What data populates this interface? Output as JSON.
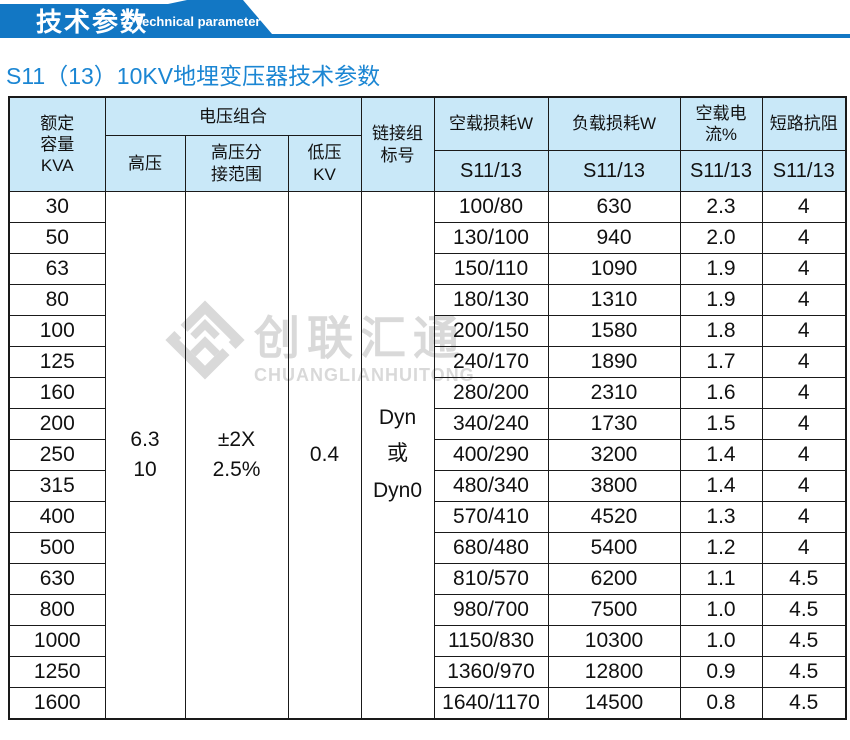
{
  "theme": {
    "banner_blue": "#1277c4",
    "title_blue": "#1b86d3",
    "header_bg": "#c9e8f8",
    "watermark_gray": "#d9d9d9"
  },
  "banner": {
    "title_cn": "技术参数",
    "title_en": "Technical parameter"
  },
  "page_title": "S11（13）10KV地埋变压器技术参数",
  "watermark": {
    "cn": "创联汇通",
    "en": "CHUANGLIANHUITONG"
  },
  "table": {
    "headers": {
      "capacity": "额定\n容量\nKVA",
      "voltage_combo": "电压组合",
      "hv": "高压",
      "hv_tap_range": "高压分\n接范围",
      "lv": "低压\nKV",
      "vector_group": "链接组\n标号",
      "no_load_loss": "空载损耗W",
      "load_loss": "负载损耗W",
      "no_load_current": "空载电流%",
      "short_circuit_impedance": "短路抗阻",
      "series_label": "S11/13"
    },
    "merged_cells": {
      "hv_value": "6.3\n10",
      "hv_tap_value": "±2X\n2.5%",
      "lv_value": "0.4",
      "vector_group_value": "Dyn\n或\nDyn0"
    },
    "rows": [
      {
        "kva": "30",
        "no_load_loss": "100/80",
        "load_loss": "630",
        "no_load_current": "2.3",
        "impedance": "4"
      },
      {
        "kva": "50",
        "no_load_loss": "130/100",
        "load_loss": "940",
        "no_load_current": "2.0",
        "impedance": "4"
      },
      {
        "kva": "63",
        "no_load_loss": "150/110",
        "load_loss": "1090",
        "no_load_current": "1.9",
        "impedance": "4"
      },
      {
        "kva": "80",
        "no_load_loss": "180/130",
        "load_loss": "1310",
        "no_load_current": "1.9",
        "impedance": "4"
      },
      {
        "kva": "100",
        "no_load_loss": "200/150",
        "load_loss": "1580",
        "no_load_current": "1.8",
        "impedance": "4"
      },
      {
        "kva": "125",
        "no_load_loss": "240/170",
        "load_loss": "1890",
        "no_load_current": "1.7",
        "impedance": "4"
      },
      {
        "kva": "160",
        "no_load_loss": "280/200",
        "load_loss": "2310",
        "no_load_current": "1.6",
        "impedance": "4"
      },
      {
        "kva": "200",
        "no_load_loss": "340/240",
        "load_loss": "1730",
        "no_load_current": "1.5",
        "impedance": "4"
      },
      {
        "kva": "250",
        "no_load_loss": "400/290",
        "load_loss": "3200",
        "no_load_current": "1.4",
        "impedance": "4"
      },
      {
        "kva": "315",
        "no_load_loss": "480/340",
        "load_loss": "3800",
        "no_load_current": "1.4",
        "impedance": "4"
      },
      {
        "kva": "400",
        "no_load_loss": "570/410",
        "load_loss": "4520",
        "no_load_current": "1.3",
        "impedance": "4"
      },
      {
        "kva": "500",
        "no_load_loss": "680/480",
        "load_loss": "5400",
        "no_load_current": "1.2",
        "impedance": "4"
      },
      {
        "kva": "630",
        "no_load_loss": "810/570",
        "load_loss": "6200",
        "no_load_current": "1.1",
        "impedance": "4.5"
      },
      {
        "kva": "800",
        "no_load_loss": "980/700",
        "load_loss": "7500",
        "no_load_current": "1.0",
        "impedance": "4.5"
      },
      {
        "kva": "1000",
        "no_load_loss": "1150/830",
        "load_loss": "10300",
        "no_load_current": "1.0",
        "impedance": "4.5"
      },
      {
        "kva": "1250",
        "no_load_loss": "1360/970",
        "load_loss": "12800",
        "no_load_current": "0.9",
        "impedance": "4.5"
      },
      {
        "kva": "1600",
        "no_load_loss": "1640/1170",
        "load_loss": "14500",
        "no_load_current": "0.8",
        "impedance": "4.5"
      }
    ]
  }
}
